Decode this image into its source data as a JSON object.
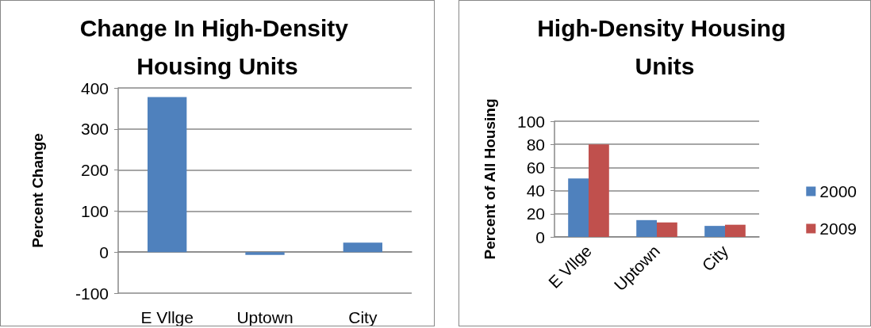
{
  "chart_data": [
    {
      "type": "bar",
      "title": "Change In High-Density Housing Units",
      "ylabel": "Percent Change",
      "categories": [
        "E Vllge",
        "Uptown",
        "City"
      ],
      "series": [
        {
          "color": "#4f81bd",
          "values": [
            378,
            -7,
            23
          ]
        }
      ],
      "ylim": [
        -100,
        400
      ],
      "yticks": [
        -100,
        0,
        100,
        200,
        300,
        400
      ],
      "grid": "y",
      "legend": false
    },
    {
      "type": "bar",
      "title": "High-Density Housing Units",
      "ylabel": "Percent of All Housing",
      "categories": [
        "E Vllge",
        "Uptown",
        "City"
      ],
      "series": [
        {
          "name": "2000",
          "color": "#4f81bd",
          "values": [
            50.5,
            14.5,
            9.5
          ]
        },
        {
          "name": "2009",
          "color": "#c0504d",
          "values": [
            80,
            12.5,
            10.5
          ]
        }
      ],
      "ylim": [
        0,
        100
      ],
      "yticks": [
        0,
        20,
        40,
        60,
        80,
        100
      ],
      "grid": "y",
      "legend": "right"
    }
  ]
}
